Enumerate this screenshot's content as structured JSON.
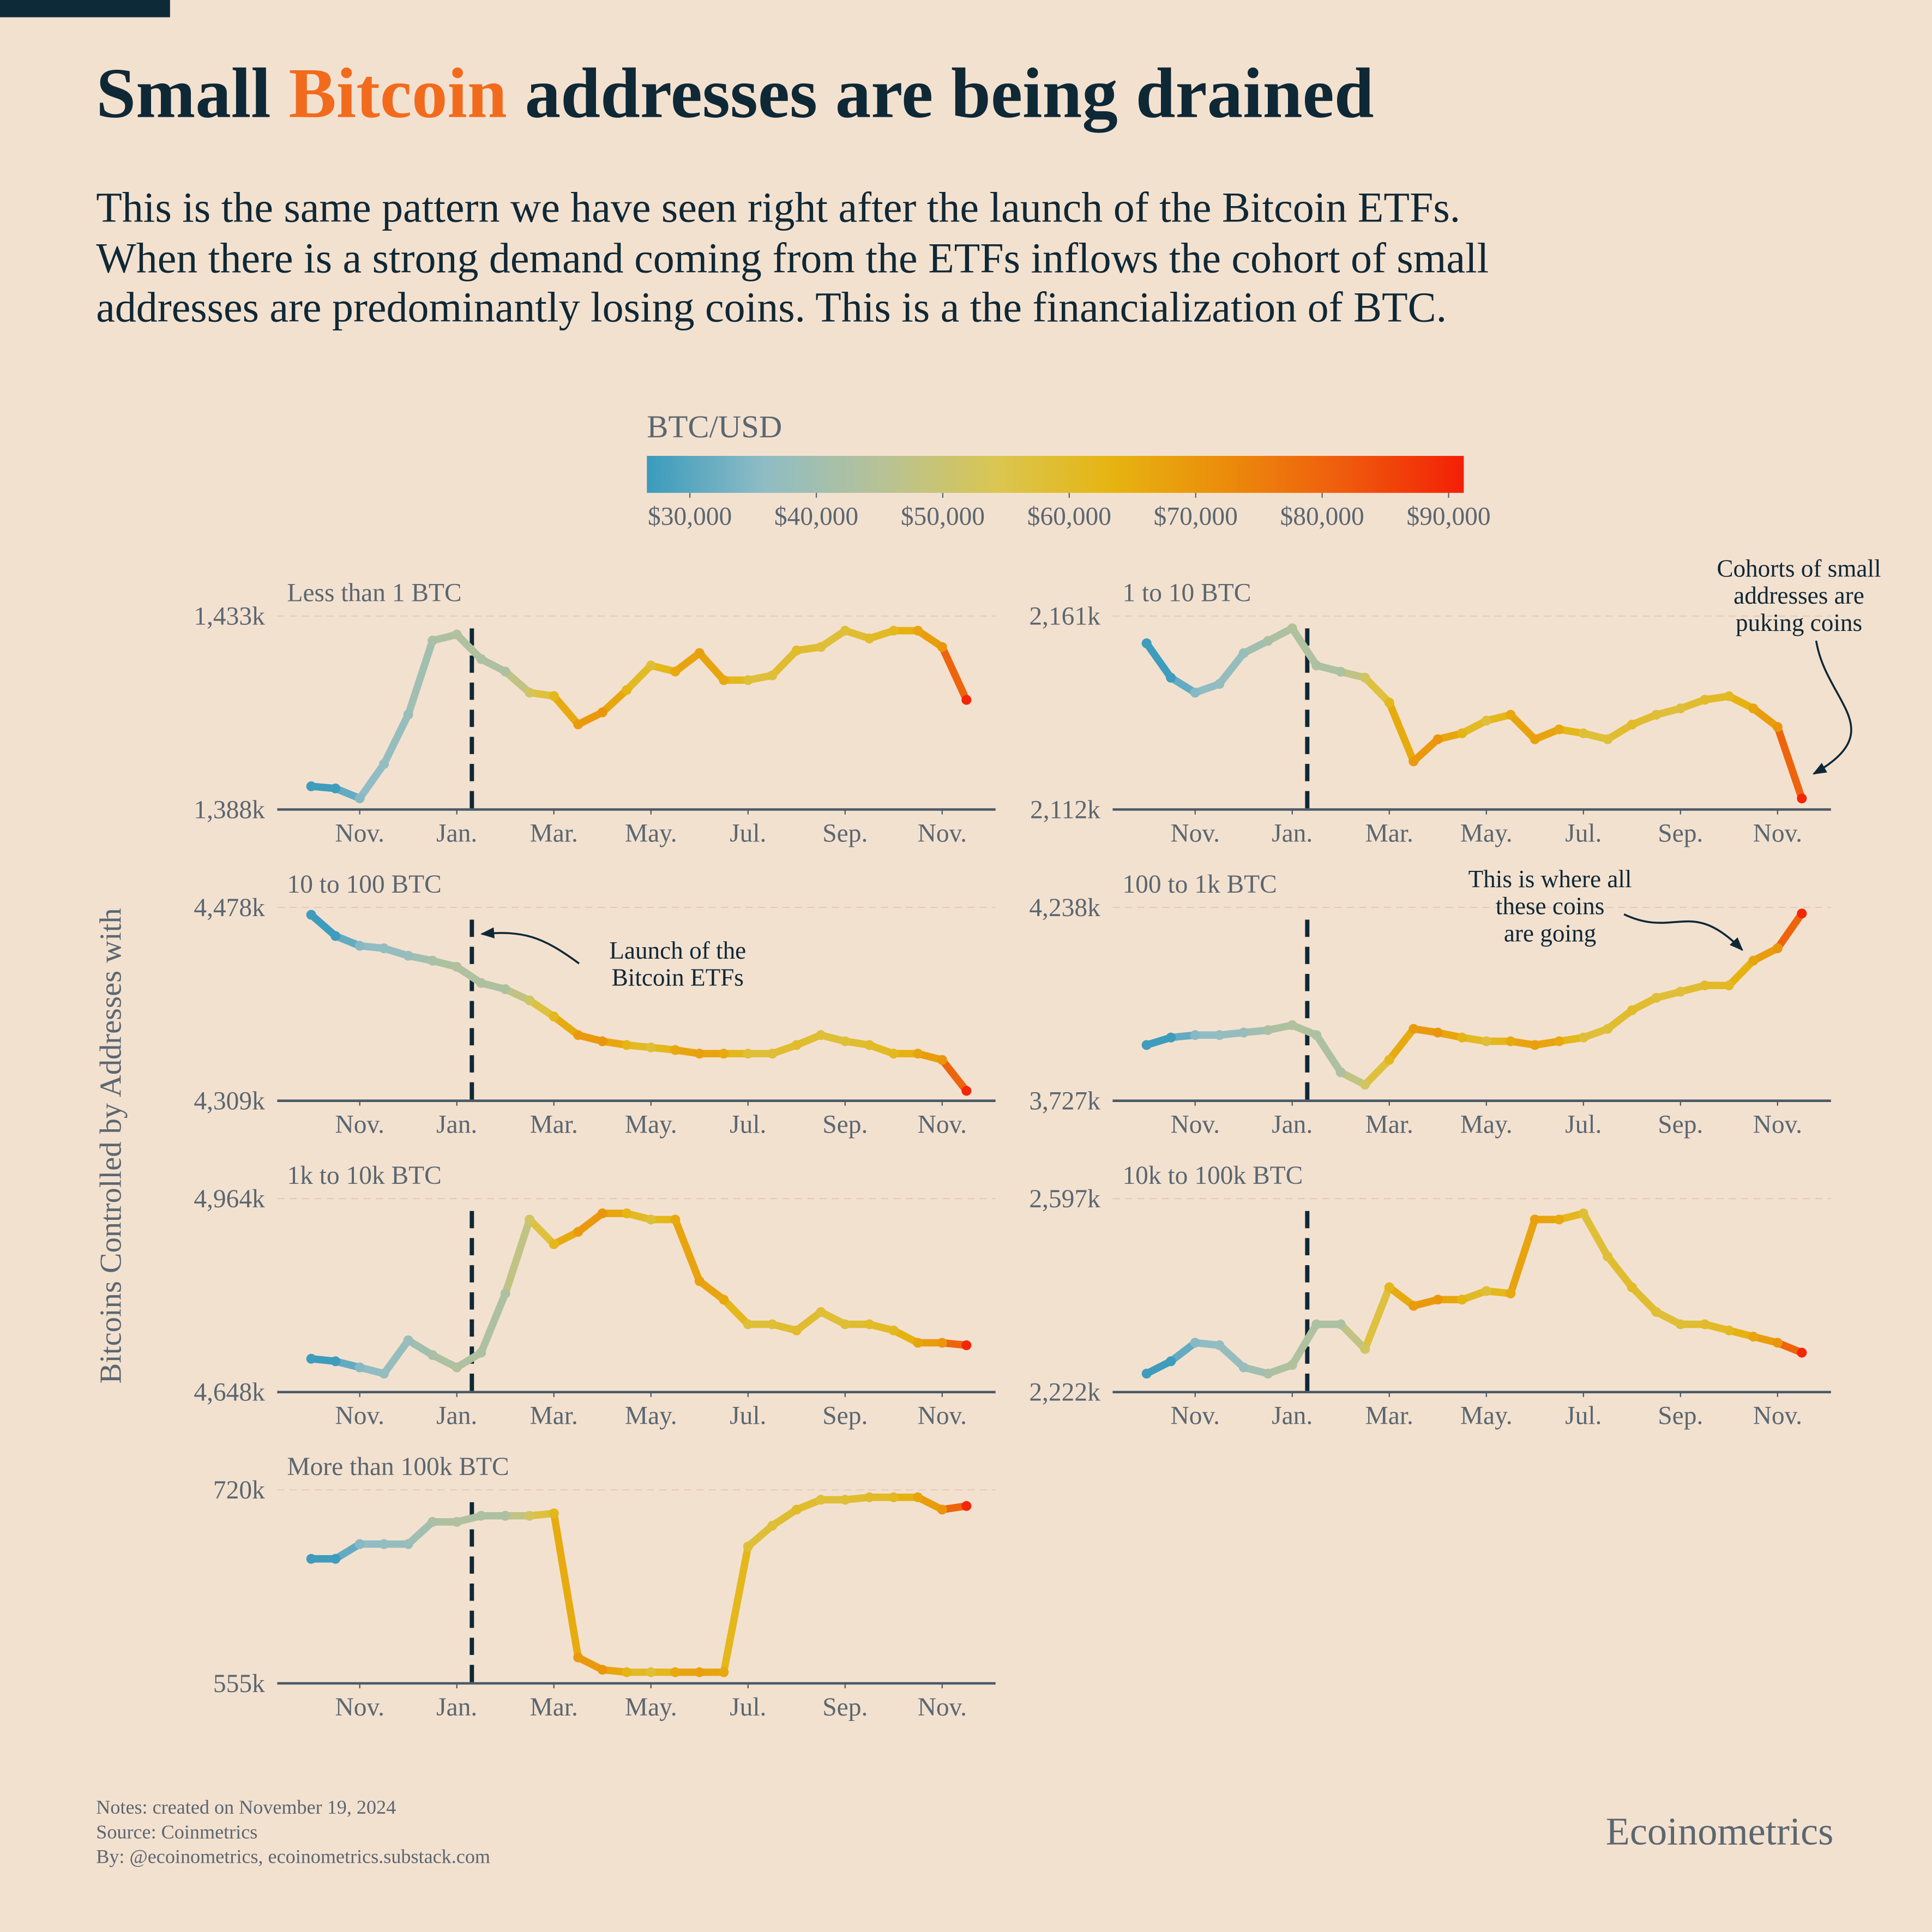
{
  "header": {
    "title": [
      "Small ",
      "Bitcoin",
      " addresses are being drained"
    ],
    "subtitle": [
      "This is the same pattern we have seen right after the launch of the Bitcoin ETFs.",
      "When there is a strong demand coming from the ETFs inflows the cohort of small",
      "addresses are predominantly losing coins. This is a the financialization of BTC."
    ]
  },
  "colorbar": {
    "title": "BTC/USD",
    "lim": [
      26600,
      91200
    ],
    "ticks": [
      {
        "value": 30000,
        "label": "$30,000"
      },
      {
        "value": 40000,
        "label": "$40,000"
      },
      {
        "value": 50000,
        "label": "$50,000"
      },
      {
        "value": 60000,
        "label": "$60,000"
      },
      {
        "value": 70000,
        "label": "$70,000"
      },
      {
        "value": 80000,
        "label": "$80,000"
      },
      {
        "value": 90000,
        "label": "$90,000"
      }
    ],
    "colors": [
      "#3a9bbd",
      "#8fbcc5",
      "#b6c297",
      "#dac651",
      "#e6b410",
      "#ec8a0b",
      "#ef5a0d",
      "#f41f06"
    ],
    "values": [
      27000,
      27000,
      35000,
      37000,
      38000,
      42000,
      44000,
      43000,
      43000,
      52000,
      62000,
      69000,
      70000,
      63000,
      58000,
      66000,
      68000,
      66000,
      58000,
      58000,
      60000,
      58000,
      58000,
      60000,
      61000,
      67000,
      70000,
      90000
    ]
  },
  "y_label": "Bitcoins Controlled by Addresses with",
  "chart_data": [
    {
      "type": "line",
      "title": "Less than 1 BTC",
      "xlim": [
        -0.7,
        14.1
      ],
      "vline": 3.31,
      "xticks": [
        {
          "value": 1,
          "label": "Nov."
        },
        {
          "value": 3,
          "label": "Jan."
        },
        {
          "value": 5,
          "label": "Mar."
        },
        {
          "value": 7,
          "label": "May."
        },
        {
          "value": 9,
          "label": "Jul."
        },
        {
          "value": 11,
          "label": "Sep."
        },
        {
          "value": 13,
          "label": "Nov."
        }
      ],
      "ylim": [
        1388,
        1433
      ],
      "yticks": [
        {
          "value": 1388,
          "label": "1,388k"
        },
        {
          "value": 1433,
          "label": "1,433k"
        }
      ],
      "x": [
        0,
        0.5,
        1,
        1.5,
        2,
        2.5,
        3,
        3.5,
        4,
        4.5,
        5,
        5.5,
        6,
        6.5,
        7,
        7.5,
        8,
        8.5,
        9,
        9.5,
        10,
        10.5,
        11,
        11.5,
        12,
        12.5,
        13,
        13.5
      ],
      "values": [
        1393.4,
        1392.9,
        1390.6,
        1398.6,
        1410.1,
        1427.3,
        1428.7,
        1423,
        1420.1,
        1415.2,
        1414.4,
        1407.8,
        1410.6,
        1415.8,
        1421.5,
        1420.1,
        1424.4,
        1418.1,
        1418.1,
        1419.2,
        1425,
        1425.8,
        1429.6,
        1427.8,
        1429.6,
        1429.6,
        1425.8,
        1413.5
      ]
    },
    {
      "type": "line",
      "title": "1 to 10 BTC",
      "xlim": [
        -0.7,
        14.1
      ],
      "vline": 3.31,
      "xticks": [
        {
          "value": 1,
          "label": "Nov."
        },
        {
          "value": 3,
          "label": "Jan."
        },
        {
          "value": 5,
          "label": "Mar."
        },
        {
          "value": 7,
          "label": "May."
        },
        {
          "value": 9,
          "label": "Jul."
        },
        {
          "value": 11,
          "label": "Sep."
        },
        {
          "value": 13,
          "label": "Nov."
        }
      ],
      "ylim": [
        2112,
        2161
      ],
      "yticks": [
        {
          "value": 2112,
          "label": "2,112k"
        },
        {
          "value": 2161,
          "label": "2,161k"
        }
      ],
      "x": [
        0,
        0.5,
        1,
        1.5,
        2,
        2.5,
        3,
        3.5,
        4,
        4.5,
        5,
        5.5,
        6,
        6.5,
        7,
        7.5,
        8,
        8.5,
        9,
        9.5,
        10,
        10.5,
        11,
        11.5,
        12,
        12.5,
        13,
        13.5
      ],
      "values": [
        2154.1,
        2145.4,
        2141.6,
        2143.8,
        2151.6,
        2154.7,
        2157.9,
        2148.5,
        2146.9,
        2145.4,
        2139.1,
        2124.2,
        2129.8,
        2131.3,
        2134.5,
        2136,
        2129.8,
        2132.3,
        2131.3,
        2129.8,
        2133.5,
        2136,
        2137.6,
        2139.8,
        2140.7,
        2137.6,
        2132.9,
        2114.8
      ],
      "annotation": [
        "Cohorts of small",
        "addresses are",
        "puking coins"
      ]
    },
    {
      "type": "line",
      "title": "10 to 100 BTC",
      "xlim": [
        -0.7,
        14.1
      ],
      "vline": 3.31,
      "xticks": [
        {
          "value": 1,
          "label": "Nov."
        },
        {
          "value": 3,
          "label": "Jan."
        },
        {
          "value": 5,
          "label": "Mar."
        },
        {
          "value": 7,
          "label": "May."
        },
        {
          "value": 9,
          "label": "Jul."
        },
        {
          "value": 11,
          "label": "Sep."
        },
        {
          "value": 13,
          "label": "Nov."
        }
      ],
      "ylim": [
        4309,
        4478
      ],
      "yticks": [
        {
          "value": 4309,
          "label": "4,309k"
        },
        {
          "value": 4478,
          "label": "4,478k"
        }
      ],
      "x": [
        0,
        0.5,
        1,
        1.5,
        2,
        2.5,
        3,
        3.5,
        4,
        4.5,
        5,
        5.5,
        6,
        6.5,
        7,
        7.5,
        8,
        8.5,
        9,
        9.5,
        10,
        10.5,
        11,
        11.5,
        12,
        12.5,
        13,
        13.5
      ],
      "values": [
        4471.5,
        4453,
        4444.4,
        4442.2,
        4435.7,
        4431.4,
        4426,
        4411.9,
        4406.5,
        4396.7,
        4382.6,
        4366.4,
        4361,
        4357.7,
        4355.6,
        4353.4,
        4350.2,
        4350.2,
        4350.2,
        4350.2,
        4357.7,
        4366.4,
        4361,
        4357.7,
        4350.2,
        4350.2,
        4344.7,
        4317.7
      ],
      "annotation": [
        "Launch of the",
        "Bitcoin ETFs"
      ]
    },
    {
      "type": "line",
      "title": "100 to 1k BTC",
      "xlim": [
        -0.7,
        14.1
      ],
      "vline": 3.31,
      "xticks": [
        {
          "value": 1,
          "label": "Nov."
        },
        {
          "value": 3,
          "label": "Jan."
        },
        {
          "value": 5,
          "label": "Mar."
        },
        {
          "value": 7,
          "label": "May."
        },
        {
          "value": 9,
          "label": "Jul."
        },
        {
          "value": 11,
          "label": "Sep."
        },
        {
          "value": 13,
          "label": "Nov."
        }
      ],
      "ylim": [
        3727,
        4238
      ],
      "yticks": [
        {
          "value": 3727,
          "label": "3,727k"
        },
        {
          "value": 4238,
          "label": "4,238k"
        }
      ],
      "x": [
        0,
        0.5,
        1,
        1.5,
        2,
        2.5,
        3,
        3.5,
        4,
        4.5,
        5,
        5.5,
        6,
        6.5,
        7,
        7.5,
        8,
        8.5,
        9,
        9.5,
        10,
        10.5,
        11,
        11.5,
        12,
        12.5,
        13,
        13.5
      ],
      "values": [
        3874.4,
        3894.1,
        3900.6,
        3900.6,
        3907.2,
        3913.7,
        3926.8,
        3900.6,
        3802.3,
        3769.6,
        3835.1,
        3917,
        3907.2,
        3894.1,
        3884.2,
        3884.2,
        3874.4,
        3884.2,
        3894.1,
        3917,
        3966.1,
        3998.9,
        4015.3,
        4031.7,
        4031.7,
        4097.2,
        4129.9,
        4221.7
      ],
      "annotation": [
        "This is where all",
        "these coins",
        "are going"
      ]
    },
    {
      "type": "line",
      "title": "1k to 10k BTC",
      "xlim": [
        -0.7,
        14.1
      ],
      "vline": 3.31,
      "xticks": [
        {
          "value": 1,
          "label": "Nov."
        },
        {
          "value": 3,
          "label": "Jan."
        },
        {
          "value": 5,
          "label": "Mar."
        },
        {
          "value": 7,
          "label": "May."
        },
        {
          "value": 9,
          "label": "Jul."
        },
        {
          "value": 11,
          "label": "Sep."
        },
        {
          "value": 13,
          "label": "Nov."
        }
      ],
      "ylim": [
        4648,
        4964
      ],
      "yticks": [
        {
          "value": 4648,
          "label": "4,648k"
        },
        {
          "value": 4964,
          "label": "4,964k"
        }
      ],
      "x": [
        0,
        0.5,
        1,
        1.5,
        2,
        2.5,
        3,
        3.5,
        4,
        4.5,
        5,
        5.5,
        6,
        6.5,
        7,
        7.5,
        8,
        8.5,
        9,
        9.5,
        10,
        10.5,
        11,
        11.5,
        12,
        12.5,
        13,
        13.5
      ],
      "values": [
        4702.4,
        4698.3,
        4688.3,
        4678.2,
        4732.5,
        4708.4,
        4688.3,
        4712.4,
        4809,
        4929.8,
        4889.6,
        4909.7,
        4939.9,
        4939.9,
        4929.8,
        4929.8,
        4829.2,
        4799,
        4758.7,
        4758.7,
        4748.7,
        4778.8,
        4758.7,
        4758.7,
        4748.7,
        4728.5,
        4728.5,
        4724.5
      ]
    },
    {
      "type": "line",
      "title": "10k to 100k BTC",
      "xlim": [
        -0.7,
        14.1
      ],
      "vline": 3.31,
      "xticks": [
        {
          "value": 1,
          "label": "Nov."
        },
        {
          "value": 3,
          "label": "Jan."
        },
        {
          "value": 5,
          "label": "Mar."
        },
        {
          "value": 7,
          "label": "May."
        },
        {
          "value": 9,
          "label": "Jul."
        },
        {
          "value": 11,
          "label": "Sep."
        },
        {
          "value": 13,
          "label": "Nov."
        }
      ],
      "ylim": [
        2222,
        2597
      ],
      "yticks": [
        {
          "value": 2222,
          "label": "2,222k"
        },
        {
          "value": 2597,
          "label": "2,597k"
        }
      ],
      "x": [
        0,
        0.5,
        1,
        1.5,
        2,
        2.5,
        3,
        3.5,
        4,
        4.5,
        5,
        5.5,
        6,
        6.5,
        7,
        7.5,
        8,
        8.5,
        9,
        9.5,
        10,
        10.5,
        11,
        11.5,
        12,
        12.5,
        13,
        13.5
      ],
      "values": [
        2257.8,
        2281.7,
        2317.6,
        2312.8,
        2269.8,
        2257.8,
        2274.6,
        2353.4,
        2353.4,
        2305.6,
        2425.1,
        2389.2,
        2401.2,
        2401.2,
        2417.9,
        2413.1,
        2556.5,
        2556.5,
        2568.4,
        2484.8,
        2425.1,
        2377.3,
        2353.4,
        2353.4,
        2341.5,
        2329.5,
        2317.6,
        2298.4
      ]
    },
    {
      "type": "line",
      "title": "More than 100k BTC",
      "xlim": [
        -0.7,
        14.1
      ],
      "vline": 3.31,
      "xticks": [
        {
          "value": 1,
          "label": "Nov."
        },
        {
          "value": 3,
          "label": "Jan."
        },
        {
          "value": 5,
          "label": "Mar."
        },
        {
          "value": 7,
          "label": "May."
        },
        {
          "value": 9,
          "label": "Jul."
        },
        {
          "value": 11,
          "label": "Sep."
        },
        {
          "value": 13,
          "label": "Nov."
        }
      ],
      "ylim": [
        555,
        720
      ],
      "yticks": [
        {
          "value": 555,
          "label": "555k"
        },
        {
          "value": 720,
          "label": "720k"
        }
      ],
      "x": [
        0,
        0.5,
        1,
        1.5,
        2,
        2.5,
        3,
        3.5,
        4,
        4.5,
        5,
        5.5,
        6,
        6.5,
        7,
        7.5,
        8,
        8.5,
        9,
        9.5,
        10,
        10.5,
        11,
        11.5,
        12,
        12.5,
        13,
        13.5
      ],
      "values": [
        661.2,
        661.2,
        673.8,
        673.8,
        673.8,
        692.7,
        692.7,
        697.9,
        697.9,
        697.9,
        700,
        577.1,
        566.6,
        564.5,
        564.5,
        564.5,
        564.5,
        564.5,
        671.7,
        689.5,
        703.2,
        711.6,
        711.6,
        713.7,
        713.7,
        713.7,
        703.2,
        706.3
      ]
    }
  ],
  "footer": {
    "notes": [
      "Notes: created on November 19, 2024",
      "Source: Coinmetrics",
      "By: @ecoinometrics, ecoinometrics.substack.com"
    ],
    "brand": "Ecoinometrics"
  }
}
